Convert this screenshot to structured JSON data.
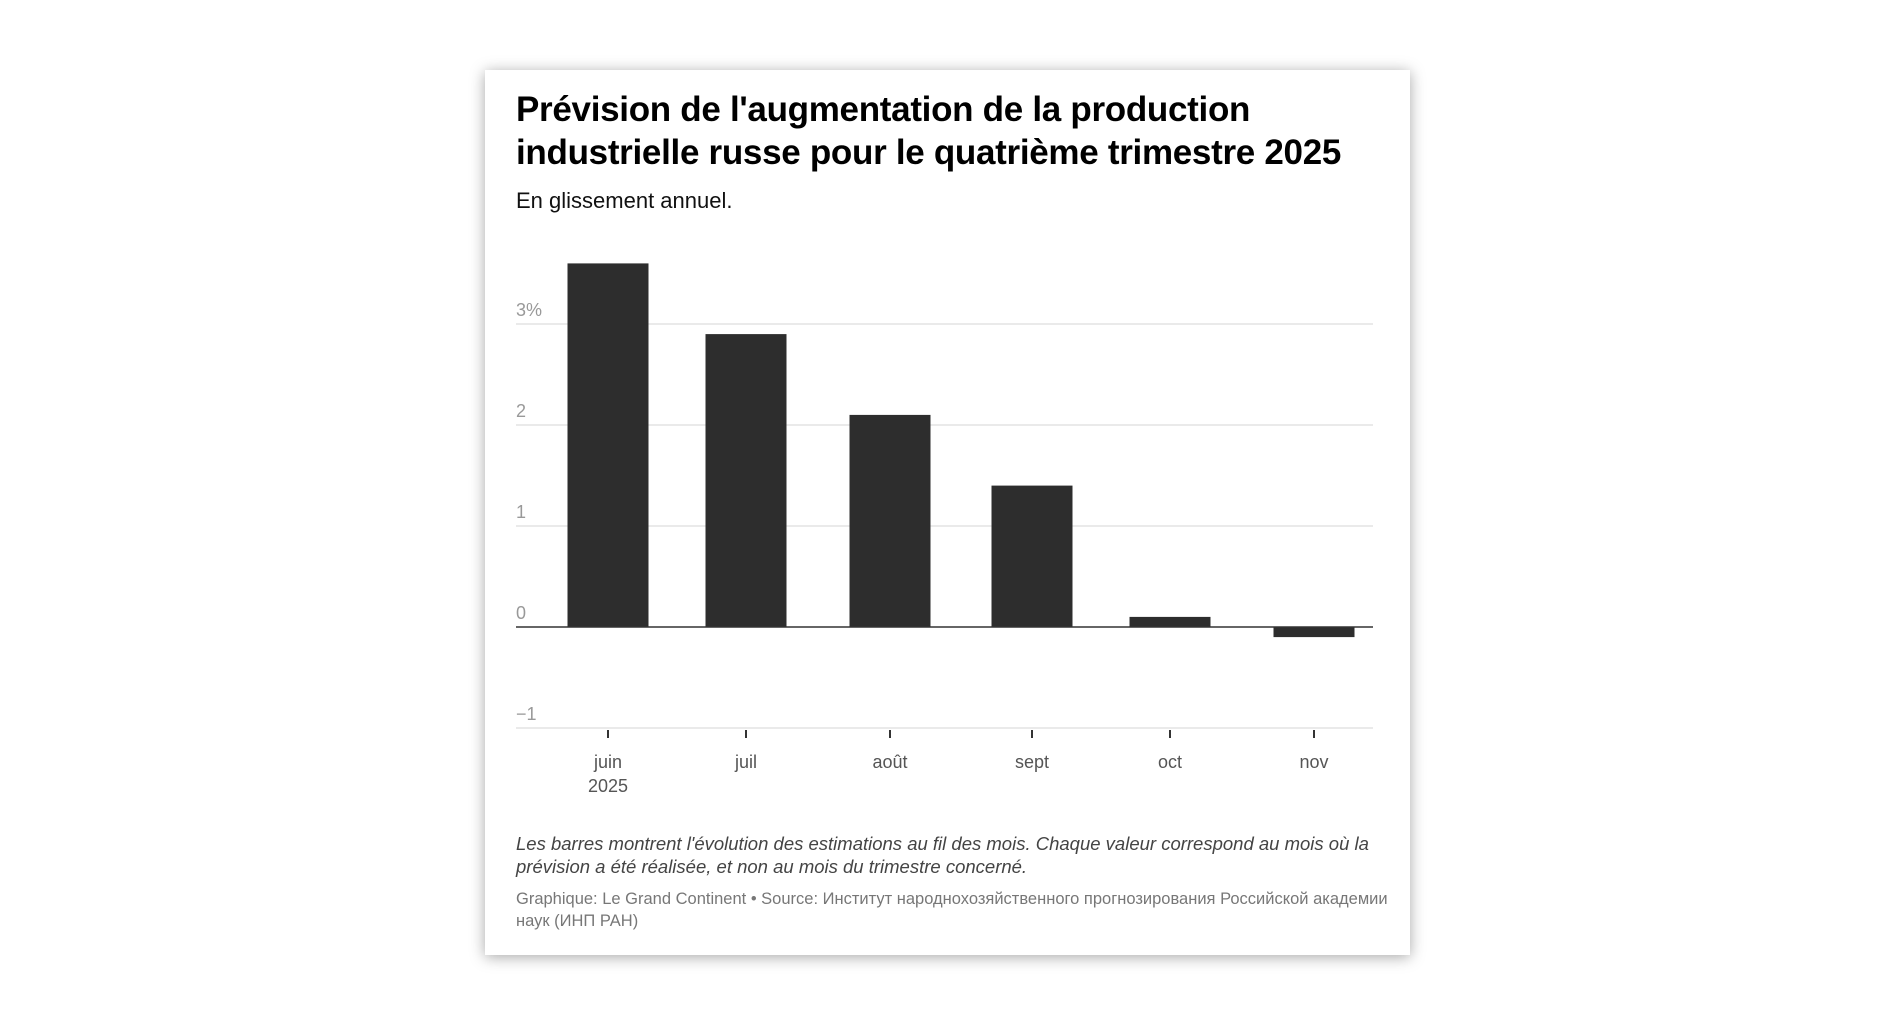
{
  "chart_data": {
    "type": "bar",
    "title": "Prévision de l'augmentation de la production industrielle russe pour le quatrième trimestre 2025",
    "subtitle": "En glissement annuel.",
    "categories": [
      "juin",
      "juil",
      "août",
      "sept",
      "oct",
      "nov"
    ],
    "category_sublabels": [
      "2025",
      "",
      "",
      "",
      "",
      ""
    ],
    "values": [
      3.6,
      2.9,
      2.1,
      1.4,
      0.1,
      -0.1
    ],
    "ylim": [
      -1,
      3.6
    ],
    "yticks": [
      -1,
      0,
      1,
      2,
      3
    ],
    "ytick_labels": [
      "−1",
      "0",
      "1",
      "2",
      "3%"
    ],
    "xlabel": "",
    "ylabel": "",
    "grid": true,
    "bar_color": "#2d2d2d",
    "note": "Les barres montrent l'évolution des estimations au fil des mois. Chaque valeur correspond au mois où la prévision a été réalisée, et non au mois du trimestre concerné.",
    "source": "Graphique: Le Grand Continent • Source: Институт народнохозяйственного прогнозирования Российской академии наук (ИНП РАН)"
  }
}
